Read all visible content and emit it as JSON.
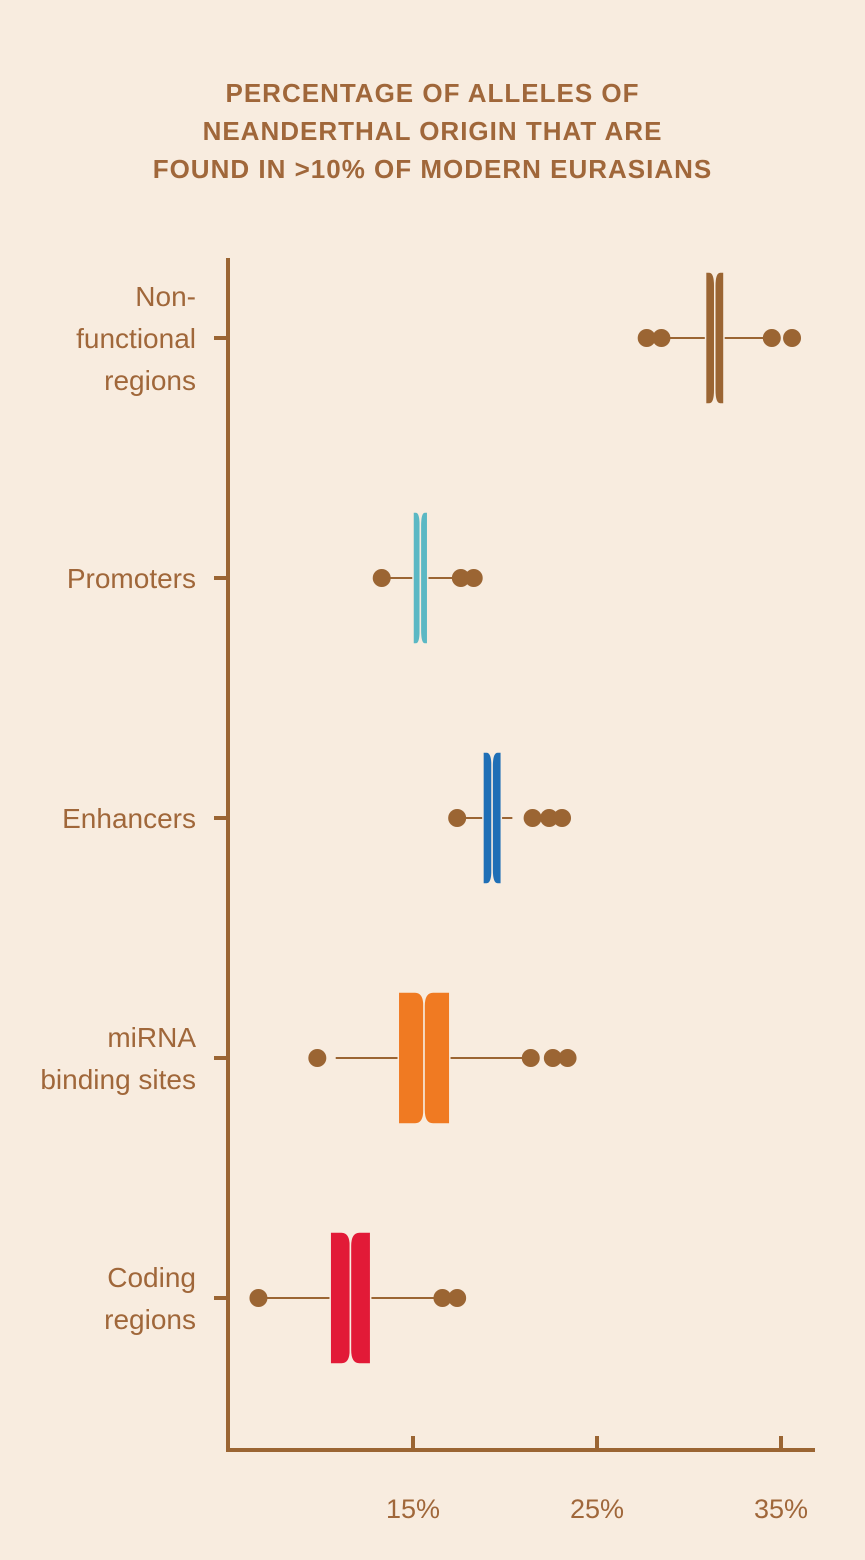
{
  "chart_data": {
    "type": "boxplot",
    "title": [
      "PERCENTAGE OF ALLELES OF",
      "NEANDERTHAL ORIGIN THAT ARE",
      "FOUND IN >10% OF MODERN EURASIANS"
    ],
    "xlabel": "",
    "ylabel": "",
    "xlim": [
      5,
      37
    ],
    "x_ticks": [
      15,
      25,
      35
    ],
    "x_tick_labels": [
      "15%",
      "25%",
      "35%"
    ],
    "orientation": "horizontal",
    "grid": false,
    "legend": "none",
    "series": [
      {
        "category": [
          "Non-",
          "functional",
          "regions"
        ],
        "color": "#9b6533",
        "box_low": 30.9,
        "median": 31.4,
        "box_high": 31.9,
        "whisker_low": 28.5,
        "whisker_high": 34.5,
        "outliers": [
          27.7,
          28.5,
          34.5,
          35.6
        ]
      },
      {
        "category": [
          "Promoters"
        ],
        "color": "#5bb8c4",
        "box_low": 15.0,
        "median": 15.4,
        "box_high": 15.8,
        "whisker_low": 13.3,
        "whisker_high": 17.6,
        "outliers": [
          13.3,
          17.6,
          18.3
        ]
      },
      {
        "category": [
          "Enhancers"
        ],
        "color": "#1f6fb6",
        "box_low": 18.8,
        "median": 19.3,
        "box_high": 19.8,
        "whisker_low": 17.4,
        "whisker_high": 20.4,
        "outliers": [
          17.4,
          21.5,
          22.4,
          23.1
        ]
      },
      {
        "category": [
          "miRNA",
          "binding sites"
        ],
        "color": "#f07a22",
        "box_low": 14.2,
        "median": 15.6,
        "box_high": 17.0,
        "whisker_low": 10.8,
        "whisker_high": 21.4,
        "outliers": [
          9.8,
          21.4,
          22.6,
          23.4
        ]
      },
      {
        "category": [
          "Coding",
          "regions"
        ],
        "color": "#e21a37",
        "box_low": 10.5,
        "median": 11.6,
        "box_high": 12.7,
        "whisker_low": 6.6,
        "whisker_high": 16.6,
        "outliers": [
          6.6,
          16.6,
          17.4
        ]
      }
    ],
    "axis_color": "#9b6533",
    "text_color": "#a0673a",
    "background": "#f8ecdf"
  }
}
